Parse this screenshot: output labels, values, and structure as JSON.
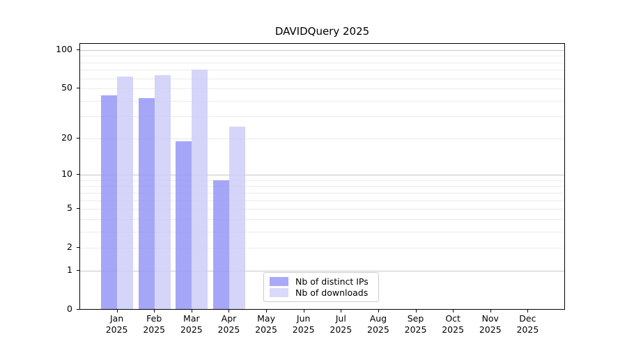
{
  "chart_data": {
    "type": "bar",
    "title": "DAVIDQuery 2025",
    "categories": [
      "Jan",
      "Feb",
      "Mar",
      "Apr",
      "May",
      "Jun",
      "Jul",
      "Aug",
      "Sep",
      "Oct",
      "Nov",
      "Dec"
    ],
    "x_tick_year": "2025",
    "series": [
      {
        "name": "Nb of distinct IPs",
        "color": "rgba(150,150,248,0.85)",
        "solid_color": "#a9a9f8",
        "values": [
          44,
          42,
          19,
          9,
          null,
          null,
          null,
          null,
          null,
          null,
          null,
          null
        ]
      },
      {
        "name": "Nb of downloads",
        "color": "rgba(206,206,249,0.85)",
        "solid_color": "#d9d9fa",
        "values": [
          62,
          64,
          70,
          25,
          null,
          null,
          null,
          null,
          null,
          null,
          null,
          null
        ]
      }
    ],
    "y_scale": "log10(value+1)",
    "y_ticks": [
      0,
      1,
      2,
      5,
      10,
      20,
      50,
      100
    ],
    "y_major_gridlines": [
      1,
      10,
      100
    ],
    "y_minor_gridlines": [
      2,
      3,
      4,
      5,
      6,
      7,
      8,
      9,
      20,
      30,
      40,
      50,
      60,
      70,
      80,
      90
    ],
    "ylim": [
      0,
      112
    ],
    "grid": true,
    "legend_position": "lower center",
    "colors": {
      "major_gridline": "#c6c6c6",
      "minor_gridline": "#ebebeb",
      "axis_frame": "#000000",
      "background": "#ffffff"
    }
  }
}
